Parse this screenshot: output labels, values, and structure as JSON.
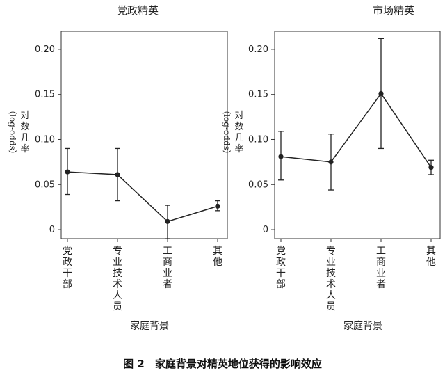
{
  "caption": "图 2　家庭背景对精英地位获得的影响效应",
  "chart_data": [
    {
      "type": "line",
      "title": "党政精英",
      "xlabel": "家庭背景",
      "ylabel_cn": "对数几率",
      "ylabel_en": "（log-odds）",
      "categories": [
        "党政干部",
        "专业技术人员",
        "工商业者",
        "其他"
      ],
      "values": [
        0.064,
        0.061,
        0.009,
        0.026
      ],
      "error_low": [
        0.039,
        0.032,
        -0.01,
        0.021
      ],
      "error_high": [
        0.09,
        0.09,
        0.027,
        0.032
      ],
      "ylim": [
        -0.01,
        0.22
      ],
      "yticks": [
        0,
        0.05,
        0.1,
        0.15,
        0.2
      ],
      "ytick_labels": [
        "0",
        "0.05",
        "0.10",
        "0.15",
        "0.20"
      ],
      "grid": false,
      "color": "#222222"
    },
    {
      "type": "line",
      "title": "市场精英",
      "xlabel": "家庭背景",
      "ylabel_cn": "对数几率",
      "ylabel_en": "（log-odds）",
      "categories": [
        "党政干部",
        "专业技术人员",
        "工商业者",
        "其他"
      ],
      "values": [
        0.081,
        0.075,
        0.151,
        0.069
      ],
      "error_low": [
        0.055,
        0.044,
        0.09,
        0.061
      ],
      "error_high": [
        0.109,
        0.106,
        0.212,
        0.077
      ],
      "ylim": [
        -0.01,
        0.22
      ],
      "yticks": [
        0,
        0.05,
        0.1,
        0.15,
        0.2
      ],
      "ytick_labels": [
        "0",
        "0.05",
        "0.10",
        "0.15",
        "0.20"
      ],
      "grid": false,
      "color": "#222222"
    }
  ]
}
